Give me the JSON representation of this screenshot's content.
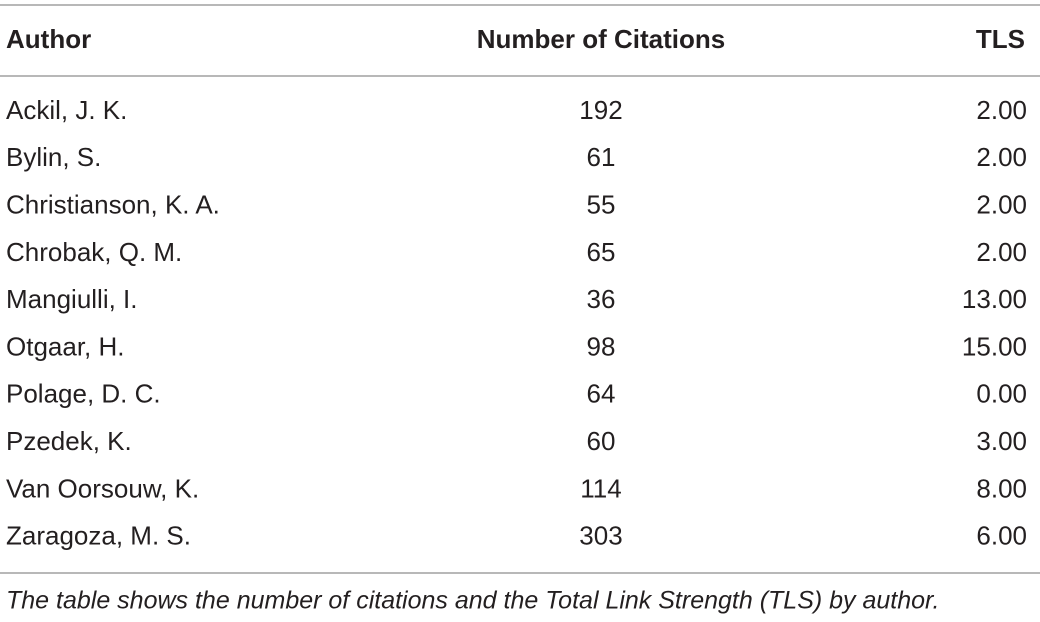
{
  "table": {
    "header": [
      "Author",
      "Number of Citations",
      "TLS"
    ],
    "rows": [
      [
        "Ackil, J. K.",
        192,
        "2.00"
      ],
      [
        "Bylin, S.",
        61,
        "2.00"
      ],
      [
        "Christianson, K. A.",
        55,
        "2.00"
      ],
      [
        "Chrobak, Q. M.",
        65,
        "2.00"
      ],
      [
        "Mangiulli, I.",
        36,
        "13.00"
      ],
      [
        "Otgaar, H.",
        98,
        "15.00"
      ],
      [
        "Polage, D. C.",
        64,
        "0.00"
      ],
      [
        "Pzedek, K.",
        60,
        "3.00"
      ],
      [
        "Van Oorsouw, K.",
        114,
        "8.00"
      ],
      [
        "Zaragoza, M. S.",
        303,
        "6.00"
      ]
    ],
    "caption": "The table shows the number of citations and the Total Link Strength (TLS) by author."
  }
}
